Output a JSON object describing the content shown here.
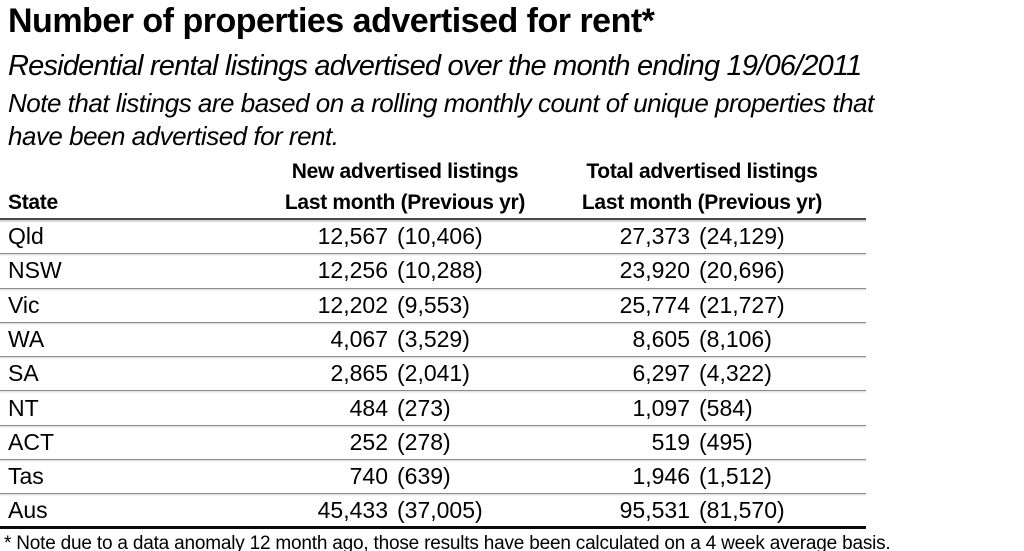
{
  "header": {
    "title": "Number of properties advertised for rent*",
    "subtitle": "Residential rental listings advertised over the month ending 19/06/2011",
    "note_lines": [
      "Note that listings are based on a rolling monthly count of unique properties that",
      "have been advertised for rent."
    ]
  },
  "table": {
    "state_header": "State",
    "groups": [
      {
        "label": "New advertised listings",
        "sub": "Last month (Previous yr)"
      },
      {
        "label": "Total advertised listings",
        "sub": "Last month (Previous yr)"
      }
    ],
    "rows": [
      {
        "state": "Qld",
        "new_last": "12,567",
        "new_prev": "(10,406)",
        "total_last": "27,373",
        "total_prev": "(24,129)"
      },
      {
        "state": "NSW",
        "new_last": "12,256",
        "new_prev": "(10,288)",
        "total_last": "23,920",
        "total_prev": "(20,696)"
      },
      {
        "state": "Vic",
        "new_last": "12,202",
        "new_prev": "(9,553)",
        "total_last": "25,774",
        "total_prev": "(21,727)"
      },
      {
        "state": "WA",
        "new_last": "4,067",
        "new_prev": "(3,529)",
        "total_last": "8,605",
        "total_prev": "(8,106)"
      },
      {
        "state": "SA",
        "new_last": "2,865",
        "new_prev": "(2,041)",
        "total_last": "6,297",
        "total_prev": "(4,322)"
      },
      {
        "state": "NT",
        "new_last": "484",
        "new_prev": "(273)",
        "total_last": "1,097",
        "total_prev": "(584)"
      },
      {
        "state": "ACT",
        "new_last": "252",
        "new_prev": "(278)",
        "total_last": "519",
        "total_prev": "(495)"
      },
      {
        "state": "Tas",
        "new_last": "740",
        "new_prev": "(639)",
        "total_last": "1,946",
        "total_prev": "(1,512)"
      },
      {
        "state": "Aus",
        "new_last": "45,433",
        "new_prev": "(37,005)",
        "total_last": "95,531",
        "total_prev": "(81,570)"
      }
    ]
  },
  "footnote": "* Note due to a data anomaly 12 month ago, those results have been calculated on a 4 week average basis.",
  "colors": {
    "text": "#000000",
    "background": "#ffffff",
    "row_line": "#8a8a8a",
    "header_line": "#4a4a4a",
    "bottom_line": "#0a0a0a"
  }
}
